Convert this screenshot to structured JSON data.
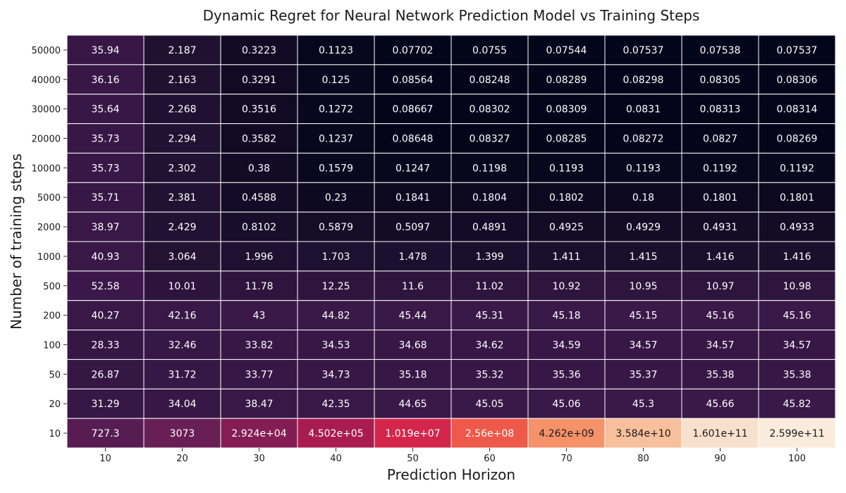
{
  "chart_data": {
    "type": "heatmap",
    "title": "Dynamic Regret for Neural Network Prediction Model vs Training Steps",
    "xlabel": "Prediction Horizon",
    "ylabel": "Number of training steps",
    "x": [
      "10",
      "20",
      "30",
      "40",
      "50",
      "60",
      "70",
      "80",
      "90",
      "100"
    ],
    "y": [
      "50000",
      "40000",
      "30000",
      "20000",
      "10000",
      "5000",
      "2000",
      "1000",
      "500",
      "200",
      "100",
      "50",
      "20",
      "10"
    ],
    "colormap": "rocket",
    "color_scale": "log",
    "values": [
      [
        35.94,
        2.187,
        0.3223,
        0.1123,
        0.07702,
        0.0755,
        0.07544,
        0.07537,
        0.07538,
        0.07537
      ],
      [
        36.16,
        2.163,
        0.3291,
        0.125,
        0.08564,
        0.08248,
        0.08289,
        0.08298,
        0.08305,
        0.08306
      ],
      [
        35.64,
        2.268,
        0.3516,
        0.1272,
        0.08667,
        0.08302,
        0.08309,
        0.0831,
        0.08313,
        0.08314
      ],
      [
        35.73,
        2.294,
        0.3582,
        0.1237,
        0.08648,
        0.08327,
        0.08285,
        0.08272,
        0.0827,
        0.08269
      ],
      [
        35.73,
        2.302,
        0.38,
        0.1579,
        0.1247,
        0.1198,
        0.1193,
        0.1193,
        0.1192,
        0.1192
      ],
      [
        35.71,
        2.381,
        0.4588,
        0.23,
        0.1841,
        0.1804,
        0.1802,
        0.18,
        0.1801,
        0.1801
      ],
      [
        38.97,
        2.429,
        0.8102,
        0.5879,
        0.5097,
        0.4891,
        0.4925,
        0.4929,
        0.4931,
        0.4933
      ],
      [
        40.93,
        3.064,
        1.996,
        1.703,
        1.478,
        1.399,
        1.411,
        1.415,
        1.416,
        1.416
      ],
      [
        52.58,
        10.01,
        11.78,
        12.25,
        11.6,
        11.02,
        10.92,
        10.95,
        10.97,
        10.98
      ],
      [
        40.27,
        42.16,
        43,
        44.82,
        45.44,
        45.31,
        45.18,
        45.15,
        45.16,
        45.16
      ],
      [
        28.33,
        32.46,
        33.82,
        34.53,
        34.68,
        34.62,
        34.59,
        34.57,
        34.57,
        34.57
      ],
      [
        26.87,
        31.72,
        33.77,
        34.73,
        35.18,
        35.32,
        35.36,
        35.37,
        35.38,
        35.38
      ],
      [
        31.29,
        34.04,
        38.47,
        42.35,
        44.65,
        45.05,
        45.06,
        45.3,
        45.66,
        45.82
      ],
      [
        727.3,
        3073,
        29240.0,
        450200.0,
        10190000.0,
        256000000.0,
        4262000000.0,
        35840000000.0,
        160100000000.0,
        259900000000.0
      ]
    ],
    "labels": [
      [
        "35.94",
        "2.187",
        "0.3223",
        "0.1123",
        "0.07702",
        "0.0755",
        "0.07544",
        "0.07537",
        "0.07538",
        "0.07537"
      ],
      [
        "36.16",
        "2.163",
        "0.3291",
        "0.125",
        "0.08564",
        "0.08248",
        "0.08289",
        "0.08298",
        "0.08305",
        "0.08306"
      ],
      [
        "35.64",
        "2.268",
        "0.3516",
        "0.1272",
        "0.08667",
        "0.08302",
        "0.08309",
        "0.0831",
        "0.08313",
        "0.08314"
      ],
      [
        "35.73",
        "2.294",
        "0.3582",
        "0.1237",
        "0.08648",
        "0.08327",
        "0.08285",
        "0.08272",
        "0.0827",
        "0.08269"
      ],
      [
        "35.73",
        "2.302",
        "0.38",
        "0.1579",
        "0.1247",
        "0.1198",
        "0.1193",
        "0.1193",
        "0.1192",
        "0.1192"
      ],
      [
        "35.71",
        "2.381",
        "0.4588",
        "0.23",
        "0.1841",
        "0.1804",
        "0.1802",
        "0.18",
        "0.1801",
        "0.1801"
      ],
      [
        "38.97",
        "2.429",
        "0.8102",
        "0.5879",
        "0.5097",
        "0.4891",
        "0.4925",
        "0.4929",
        "0.4931",
        "0.4933"
      ],
      [
        "40.93",
        "3.064",
        "1.996",
        "1.703",
        "1.478",
        "1.399",
        "1.411",
        "1.415",
        "1.416",
        "1.416"
      ],
      [
        "52.58",
        "10.01",
        "11.78",
        "12.25",
        "11.6",
        "11.02",
        "10.92",
        "10.95",
        "10.97",
        "10.98"
      ],
      [
        "40.27",
        "42.16",
        "43",
        "44.82",
        "45.44",
        "45.31",
        "45.18",
        "45.15",
        "45.16",
        "45.16"
      ],
      [
        "28.33",
        "32.46",
        "33.82",
        "34.53",
        "34.68",
        "34.62",
        "34.59",
        "34.57",
        "34.57",
        "34.57"
      ],
      [
        "26.87",
        "31.72",
        "33.77",
        "34.73",
        "35.18",
        "35.32",
        "35.36",
        "35.37",
        "35.38",
        "35.38"
      ],
      [
        "31.29",
        "34.04",
        "38.47",
        "42.35",
        "44.65",
        "45.05",
        "45.06",
        "45.3",
        "45.66",
        "45.82"
      ],
      [
        "727.3",
        "3073",
        "2.924e+04",
        "4.502e+05",
        "1.019e+07",
        "2.56e+08",
        "4.262e+09",
        "3.584e+10",
        "1.601e+11",
        "2.599e+11"
      ]
    ],
    "grid_line_color": "#ffffff",
    "colorbar": false
  }
}
